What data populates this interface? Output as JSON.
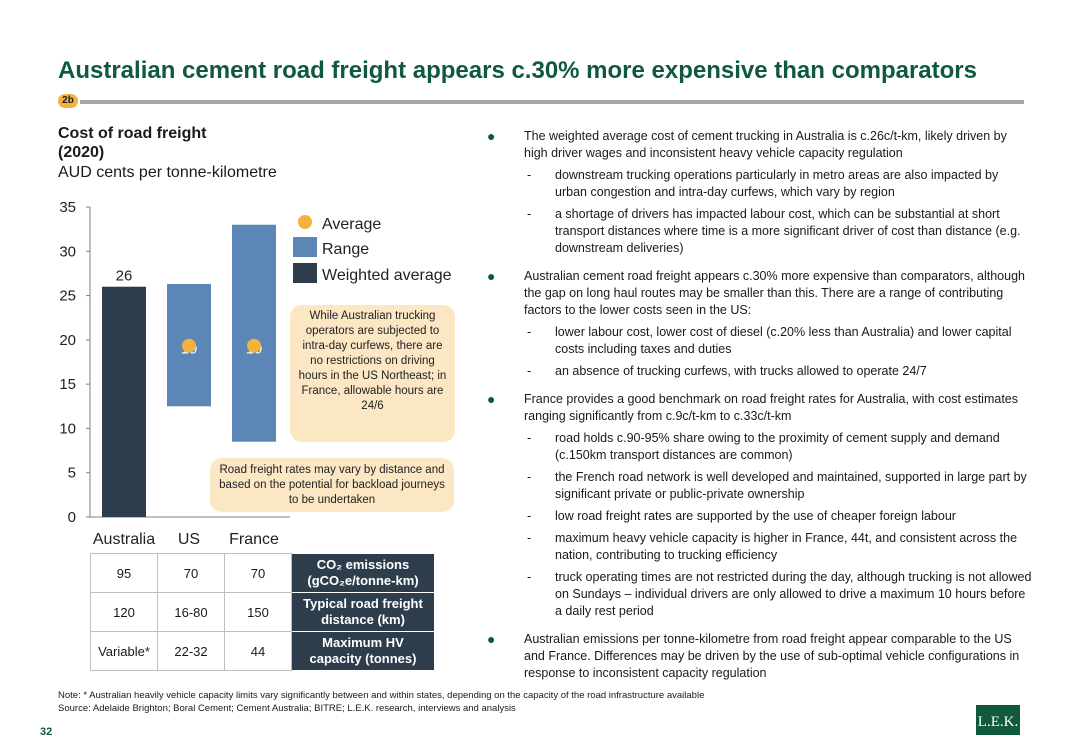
{
  "page": {
    "title": "Australian cement road freight appears c.30% more expensive than comparators",
    "tag": "2b",
    "page_number": "32",
    "logo": "L.E.K.",
    "note_line1": "Note:     * Australian heavily vehicle capacity limits vary significantly between and within states, depending on the capacity of the road infrastructure available",
    "note_line2": "Source:  Adelaide Brighton; Boral Cement; Cement Australia; BITRE; L.E.K. research, interviews and analysis"
  },
  "chart_data": {
    "type": "bar",
    "title_line1": "Cost of road freight",
    "title_line2": "(2020)",
    "subtitle": "AUD cents per tonne-kilometre",
    "categories": [
      "Australia",
      "US",
      "France"
    ],
    "ylim": [
      0,
      35
    ],
    "yticks": [
      0,
      5,
      10,
      15,
      20,
      25,
      30,
      35
    ],
    "grid": false,
    "legend_position": "top-right",
    "legend": [
      "Average",
      "Range",
      "Weighted average"
    ],
    "weighted_average": {
      "category": "Australia",
      "value": 26,
      "label": "26"
    },
    "ranges": [
      {
        "category": "US",
        "low": 12.5,
        "high": 26.3
      },
      {
        "category": "France",
        "low": 8.5,
        "high": 33
      }
    ],
    "averages": [
      {
        "category": "US",
        "value": 19,
        "label": "19"
      },
      {
        "category": "France",
        "value": 19,
        "label": "19"
      }
    ],
    "colors": {
      "weighted": "#2e3d4c",
      "range": "#5b86b5",
      "average": "#f3b13d"
    }
  },
  "callouts": {
    "hours": "While Australian trucking operators are subjected to intra-day curfews, there are no restrictions on driving hours in the US Northeast; in France, allowable hours are 24/6",
    "backload": "Road freight rates may vary by distance and based on the potential for backload journeys to be undertaken"
  },
  "table": {
    "rows": [
      {
        "values": [
          "95",
          "70",
          "70"
        ],
        "header_line1": "CO₂ emissions",
        "header_line2": "(gCO₂e/tonne-km)"
      },
      {
        "values": [
          "120",
          "16-80",
          "150"
        ],
        "header_line1": "Typical road freight",
        "header_line2": "distance (km)"
      },
      {
        "values": [
          "Variable*",
          "22-32",
          "44"
        ],
        "header_line1": "Maximum HV",
        "header_line2": "capacity (tonnes)"
      }
    ]
  },
  "bullets": {
    "b1": "The weighted average cost of cement trucking in Australia is c.26c/t-km, likely driven by high driver wages and inconsistent heavy vehicle capacity regulation",
    "b1_s1": "downstream trucking operations particularly in metro areas are also impacted by urban congestion and intra-day curfews, which vary by region",
    "b1_s2": "a shortage of drivers has impacted labour cost, which can be substantial at short transport distances where time is a more significant driver of cost than distance (e.g. downstream deliveries)",
    "b2": "Australian cement road freight appears c.30% more expensive than comparators, although the gap on long haul routes may be smaller than this. There are a range of contributing factors to the lower costs seen in the US:",
    "b2_s1": "lower labour cost, lower cost of diesel (c.20% less than Australia) and lower capital costs including taxes and duties",
    "b2_s2": "an absence of trucking curfews, with trucks allowed to operate 24/7",
    "b3": "France provides a good benchmark on road freight rates for Australia, with cost estimates ranging significantly from c.9c/t-km to c.33c/t-km",
    "b3_s1": "road holds c.90-95% share owing to the proximity of cement supply and demand (c.150km transport distances are common)",
    "b3_s2": "the French road network is well developed and maintained, supported in large part by significant private or public-private ownership",
    "b3_s3": "low road freight rates are supported by the use of cheaper foreign labour",
    "b3_s4": "maximum heavy vehicle capacity is higher in France, 44t, and consistent across the nation, contributing to trucking efficiency",
    "b3_s5": "truck operating times are not restricted during the day, although trucking is not allowed on Sundays – individual drivers are only allowed to drive a maximum 10 hours before a daily rest period",
    "b4": "Australian emissions per tonne-kilometre from road freight appear comparable to the US and France. Differences may be driven by the use of sub-optimal vehicle configurations in response to inconsistent capacity regulation"
  }
}
